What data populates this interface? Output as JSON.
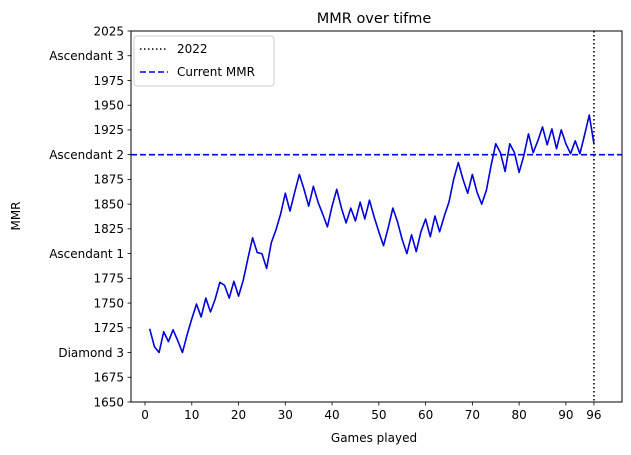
{
  "chart_data": {
    "type": "line",
    "title": "MMR over tifme",
    "xlabel": "Games played",
    "ylabel": "MMR",
    "xlim": [
      -3,
      102
    ],
    "ylim": [
      1650,
      2025
    ],
    "x_ticks": [
      {
        "value": 0,
        "label": "0"
      },
      {
        "value": 10,
        "label": "10"
      },
      {
        "value": 20,
        "label": "20"
      },
      {
        "value": 30,
        "label": "30"
      },
      {
        "value": 40,
        "label": "40"
      },
      {
        "value": 50,
        "label": "50"
      },
      {
        "value": 60,
        "label": "60"
      },
      {
        "value": 70,
        "label": "70"
      },
      {
        "value": 80,
        "label": "80"
      },
      {
        "value": 90,
        "label": "90"
      },
      {
        "value": 96,
        "label": "96"
      }
    ],
    "y_ticks": [
      {
        "value": 1650,
        "label": "1650"
      },
      {
        "value": 1675,
        "label": "1675"
      },
      {
        "value": 1700,
        "label": "Diamond 3"
      },
      {
        "value": 1725,
        "label": "1725"
      },
      {
        "value": 1750,
        "label": "1750"
      },
      {
        "value": 1775,
        "label": "1775"
      },
      {
        "value": 1800,
        "label": "Ascendant 1"
      },
      {
        "value": 1825,
        "label": "1825"
      },
      {
        "value": 1850,
        "label": "1850"
      },
      {
        "value": 1875,
        "label": "1875"
      },
      {
        "value": 1900,
        "label": "Ascendant 2"
      },
      {
        "value": 1925,
        "label": "1925"
      },
      {
        "value": 1950,
        "label": "1950"
      },
      {
        "value": 1975,
        "label": "1975"
      },
      {
        "value": 2000,
        "label": "Ascendant 3"
      },
      {
        "value": 2025,
        "label": "2025"
      }
    ],
    "series": [
      {
        "name": "MMR",
        "color": "#0000dd",
        "x": [
          1,
          2,
          3,
          4,
          5,
          6,
          7,
          8,
          9,
          10,
          11,
          12,
          13,
          14,
          15,
          16,
          17,
          18,
          19,
          20,
          21,
          22,
          23,
          24,
          25,
          26,
          27,
          28,
          29,
          30,
          31,
          32,
          33,
          34,
          35,
          36,
          37,
          38,
          39,
          40,
          41,
          42,
          43,
          44,
          45,
          46,
          47,
          48,
          49,
          50,
          51,
          52,
          53,
          54,
          55,
          56,
          57,
          58,
          59,
          60,
          61,
          62,
          63,
          64,
          65,
          66,
          67,
          68,
          69,
          70,
          71,
          72,
          73,
          74,
          75,
          76,
          77,
          78,
          79,
          80,
          81,
          82,
          83,
          84,
          85,
          86,
          87,
          88,
          89,
          90,
          91,
          92,
          93,
          94,
          95,
          96
        ],
        "y": [
          1724,
          1706,
          1700,
          1721,
          1711,
          1723,
          1712,
          1700,
          1718,
          1734,
          1749,
          1736,
          1755,
          1741,
          1754,
          1771,
          1768,
          1755,
          1772,
          1757,
          1773,
          1795,
          1816,
          1801,
          1800,
          1785,
          1811,
          1824,
          1840,
          1861,
          1843,
          1862,
          1880,
          1865,
          1848,
          1868,
          1852,
          1840,
          1827,
          1848,
          1865,
          1846,
          1831,
          1846,
          1833,
          1852,
          1835,
          1854,
          1837,
          1822,
          1808,
          1826,
          1846,
          1832,
          1814,
          1800,
          1819,
          1802,
          1822,
          1835,
          1817,
          1838,
          1822,
          1838,
          1852,
          1875,
          1892,
          1875,
          1861,
          1880,
          1862,
          1850,
          1864,
          1889,
          1911,
          1902,
          1883,
          1911,
          1902,
          1882,
          1899,
          1921,
          1902,
          1914,
          1928,
          1910,
          1926,
          1906,
          1925,
          1911,
          1901,
          1914,
          1901,
          1920,
          1940,
          1911
        ]
      }
    ],
    "reference_lines": [
      {
        "name": "2022",
        "orientation": "vertical",
        "value": 96,
        "style": "dotted",
        "color": "#000000"
      },
      {
        "name": "Current MMR",
        "orientation": "horizontal",
        "value": 1900,
        "style": "dashed",
        "color": "#0000ff"
      }
    ],
    "legend": {
      "placement": "top-left",
      "entries": [
        {
          "label": "2022",
          "style": "dotted",
          "color": "#000000"
        },
        {
          "label": "Current MMR",
          "style": "dashed",
          "color": "#0000ff"
        }
      ]
    }
  }
}
